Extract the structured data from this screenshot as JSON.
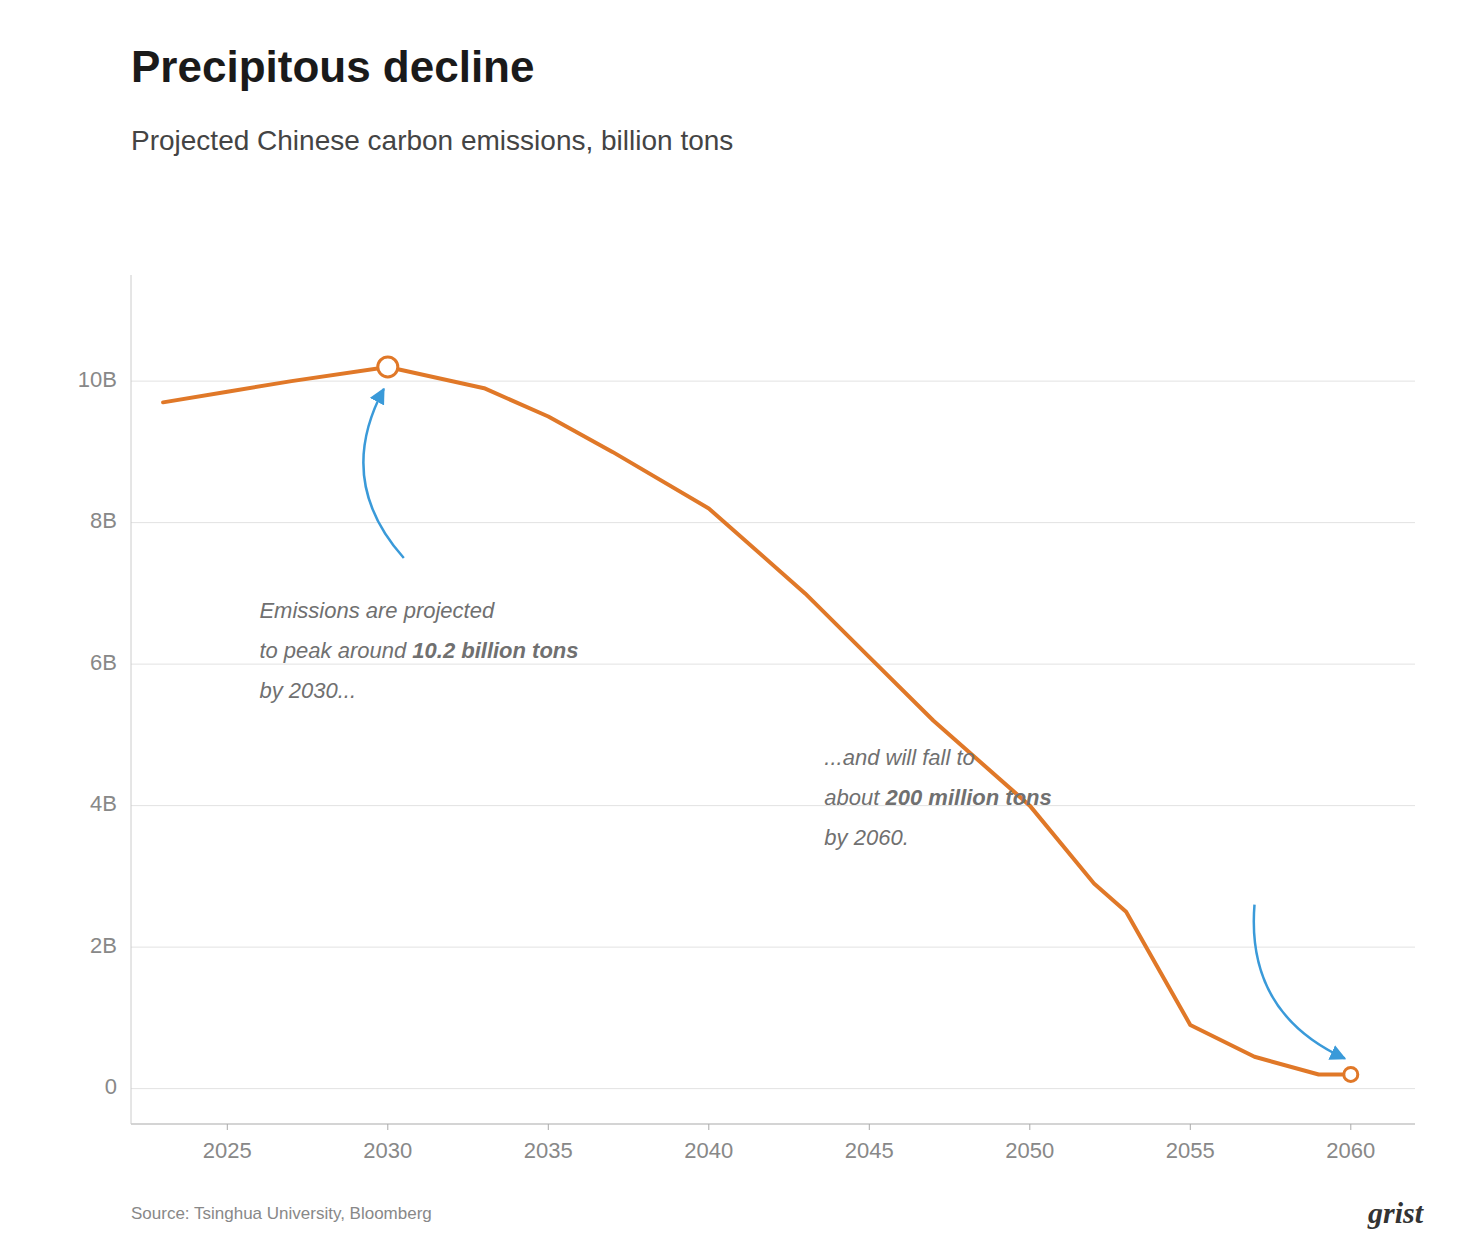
{
  "chart_data": {
    "type": "line",
    "title": "Precipitous decline",
    "subtitle": "Projected Chinese carbon emissions, billion tons",
    "source": "Source: Tsinghua University, Bloomberg",
    "logo": "grist",
    "x": [
      2023,
      2025,
      2027,
      2030,
      2033,
      2035,
      2037,
      2040,
      2043,
      2045,
      2047,
      2050,
      2052,
      2053,
      2055,
      2057,
      2059,
      2060
    ],
    "values": [
      9.7,
      9.85,
      10.0,
      10.2,
      9.9,
      9.5,
      9.0,
      8.2,
      7.0,
      6.1,
      5.2,
      4.0,
      2.9,
      2.5,
      0.9,
      0.45,
      0.2,
      0.2
    ],
    "color": "#e07828",
    "markers": [
      {
        "x": 2030,
        "y": 10.2
      },
      {
        "x": 2060,
        "y": 0.2
      }
    ],
    "annotations": [
      {
        "lines": [
          [
            "Emissions are projected"
          ],
          [
            "to peak around ",
            "10.2 billion tons"
          ],
          [
            "by 2030..."
          ]
        ]
      },
      {
        "lines": [
          [
            "...and will fall to"
          ],
          [
            "about ",
            "200 million tons"
          ],
          [
            "by 2060."
          ]
        ]
      }
    ],
    "xlim": [
      2022,
      2062
    ],
    "ylim": [
      -0.5,
      11.5
    ],
    "xticks": [
      2025,
      2030,
      2035,
      2040,
      2045,
      2050,
      2055,
      2060
    ],
    "yticks": [
      0,
      {
        "value": 2,
        "label": "2B"
      },
      {
        "value": 4,
        "label": "4B"
      },
      {
        "value": 6,
        "label": "6B"
      },
      {
        "value": 8,
        "label": "8B"
      },
      {
        "value": 10,
        "label": "10B"
      }
    ],
    "grid": true
  }
}
